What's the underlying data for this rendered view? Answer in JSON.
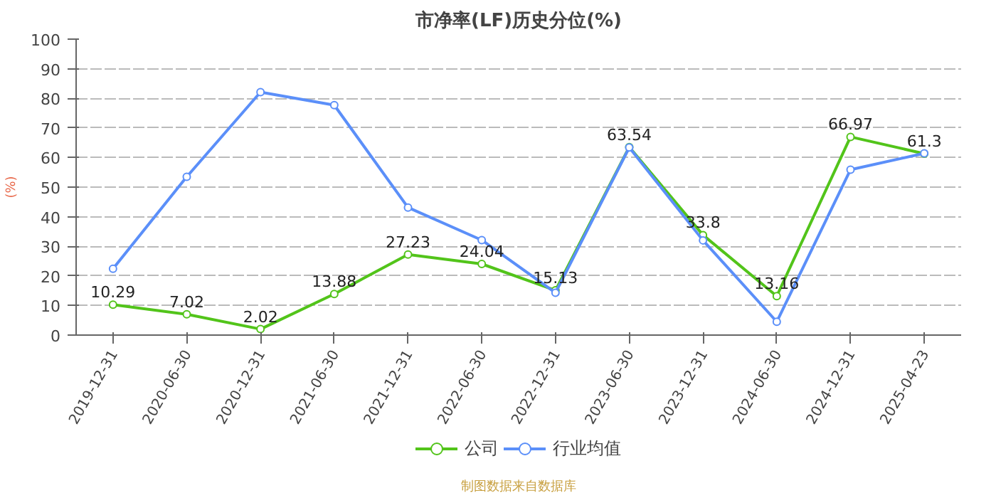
{
  "chart_data": {
    "type": "line",
    "title": "市净率(LF)历史分位(%)",
    "ylabel": "(%)",
    "categories": [
      "2019-12-31",
      "2020-06-30",
      "2020-12-31",
      "2021-06-30",
      "2021-12-31",
      "2022-06-30",
      "2022-12-31",
      "2023-06-30",
      "2023-12-31",
      "2024-06-30",
      "2024-12-31",
      "2025-04-23"
    ],
    "series": [
      {
        "name": "公司",
        "color": "#52c41a",
        "data_labels": true,
        "values": [
          10.29,
          7.02,
          2.02,
          13.88,
          27.23,
          24.04,
          15.13,
          63.54,
          33.8,
          13.16,
          66.97,
          61.3
        ]
      },
      {
        "name": "行业均值",
        "color": "#5b8ff9",
        "values": [
          22.4,
          53.5,
          82.1,
          77.7,
          43.1,
          32.1,
          14.3,
          63.4,
          32.0,
          4.5,
          55.9,
          61.4
        ]
      }
    ],
    "ylim": [
      0,
      100
    ],
    "yticks": [
      0,
      10,
      20,
      30,
      40,
      50,
      60,
      70,
      80,
      90,
      100
    ],
    "grid": "y",
    "legend": "bottom",
    "marker": "circle",
    "line_style": "solid",
    "annotations": [
      "制图数据来自数据库"
    ]
  }
}
